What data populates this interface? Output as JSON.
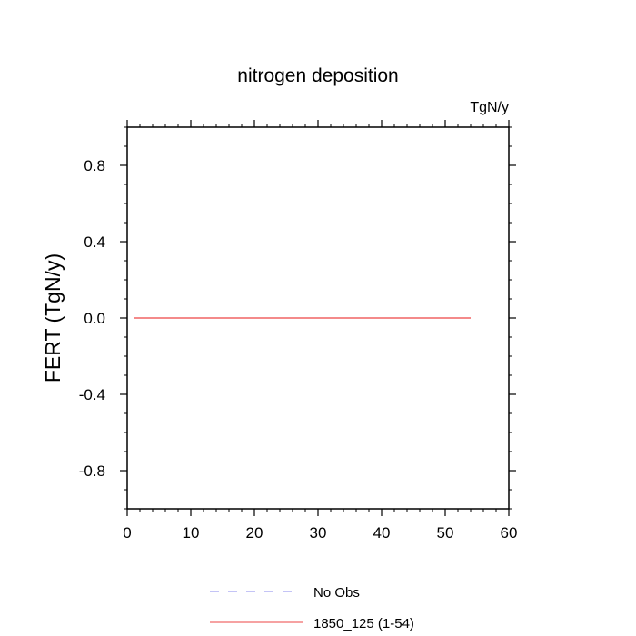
{
  "chart_data": {
    "type": "line",
    "title": "nitrogen deposition",
    "units_label": "TgN/y",
    "ylabel": "FERT  (TgN/y)",
    "xlabel": "",
    "xlim": [
      0,
      60
    ],
    "ylim": [
      -1,
      1
    ],
    "x_ticks": [
      0,
      10,
      20,
      30,
      40,
      50,
      60
    ],
    "x_tick_labels": [
      "0",
      "10",
      "20",
      "30",
      "40",
      "50",
      "60"
    ],
    "y_ticks": [
      -0.8,
      -0.4,
      0.0,
      0.4,
      0.8
    ],
    "y_tick_labels": [
      "-0.8",
      "-0.4",
      "0.0",
      "0.4",
      "0.8"
    ],
    "grid": false,
    "legend_position": "bottom",
    "series": [
      {
        "name": "No Obs",
        "color": "#8888ee",
        "style": "dashed",
        "x": [],
        "values": []
      },
      {
        "name": "1850_125 (1-54)",
        "color": "#ee4444",
        "style": "solid",
        "x": [
          1,
          54
        ],
        "values": [
          0.0,
          0.0
        ]
      }
    ]
  }
}
